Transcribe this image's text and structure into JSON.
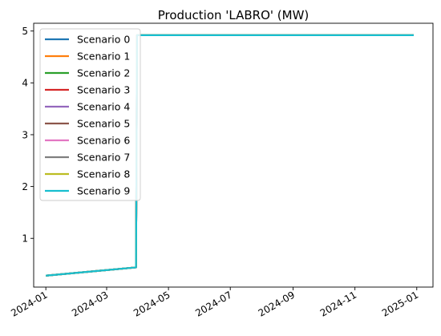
{
  "chart_data": {
    "type": "line",
    "title": "Production 'LABRO' (MW)",
    "xlabel": "",
    "ylabel": "",
    "x_axis": {
      "type": "date",
      "range": [
        "2023-12-20",
        "2025-01-17"
      ],
      "ticks": [
        {
          "date": "2024-01-01",
          "label": "2024-01"
        },
        {
          "date": "2024-03-01",
          "label": "2024-03"
        },
        {
          "date": "2024-05-01",
          "label": "2024-05"
        },
        {
          "date": "2024-07-01",
          "label": "2024-07"
        },
        {
          "date": "2024-09-01",
          "label": "2024-09"
        },
        {
          "date": "2024-11-01",
          "label": "2024-11"
        },
        {
          "date": "2025-01-01",
          "label": "2025-01"
        }
      ]
    },
    "y_axis": {
      "range": [
        0.06,
        5.15
      ],
      "ticks": [
        1,
        2,
        3,
        4,
        5
      ]
    },
    "grid": false,
    "legend_position": "top-left",
    "x": [
      "2024-01-01",
      "2024-03-30",
      "2024-03-31",
      "2024-12-29"
    ],
    "series": [
      {
        "name": "Scenario 0",
        "color": "#1f77b4",
        "values": [
          0.28,
          0.44,
          4.92,
          4.92
        ]
      },
      {
        "name": "Scenario 1",
        "color": "#ff7f0e",
        "values": [
          0.28,
          0.44,
          4.92,
          4.92
        ]
      },
      {
        "name": "Scenario 2",
        "color": "#2ca02c",
        "values": [
          0.28,
          0.44,
          4.92,
          4.92
        ]
      },
      {
        "name": "Scenario 3",
        "color": "#d62728",
        "values": [
          0.28,
          0.44,
          4.92,
          4.92
        ]
      },
      {
        "name": "Scenario 4",
        "color": "#9467bd",
        "values": [
          0.28,
          0.44,
          4.92,
          4.92
        ]
      },
      {
        "name": "Scenario 5",
        "color": "#8c564b",
        "values": [
          0.28,
          0.44,
          4.92,
          4.92
        ]
      },
      {
        "name": "Scenario 6",
        "color": "#e377c2",
        "values": [
          0.28,
          0.44,
          4.92,
          4.92
        ]
      },
      {
        "name": "Scenario 7",
        "color": "#7f7f7f",
        "values": [
          0.28,
          0.44,
          4.92,
          4.92
        ]
      },
      {
        "name": "Scenario 8",
        "color": "#bcbd22",
        "values": [
          0.28,
          0.44,
          4.92,
          4.92
        ]
      },
      {
        "name": "Scenario 9",
        "color": "#17becf",
        "values": [
          0.28,
          0.44,
          4.92,
          4.92
        ]
      }
    ]
  }
}
